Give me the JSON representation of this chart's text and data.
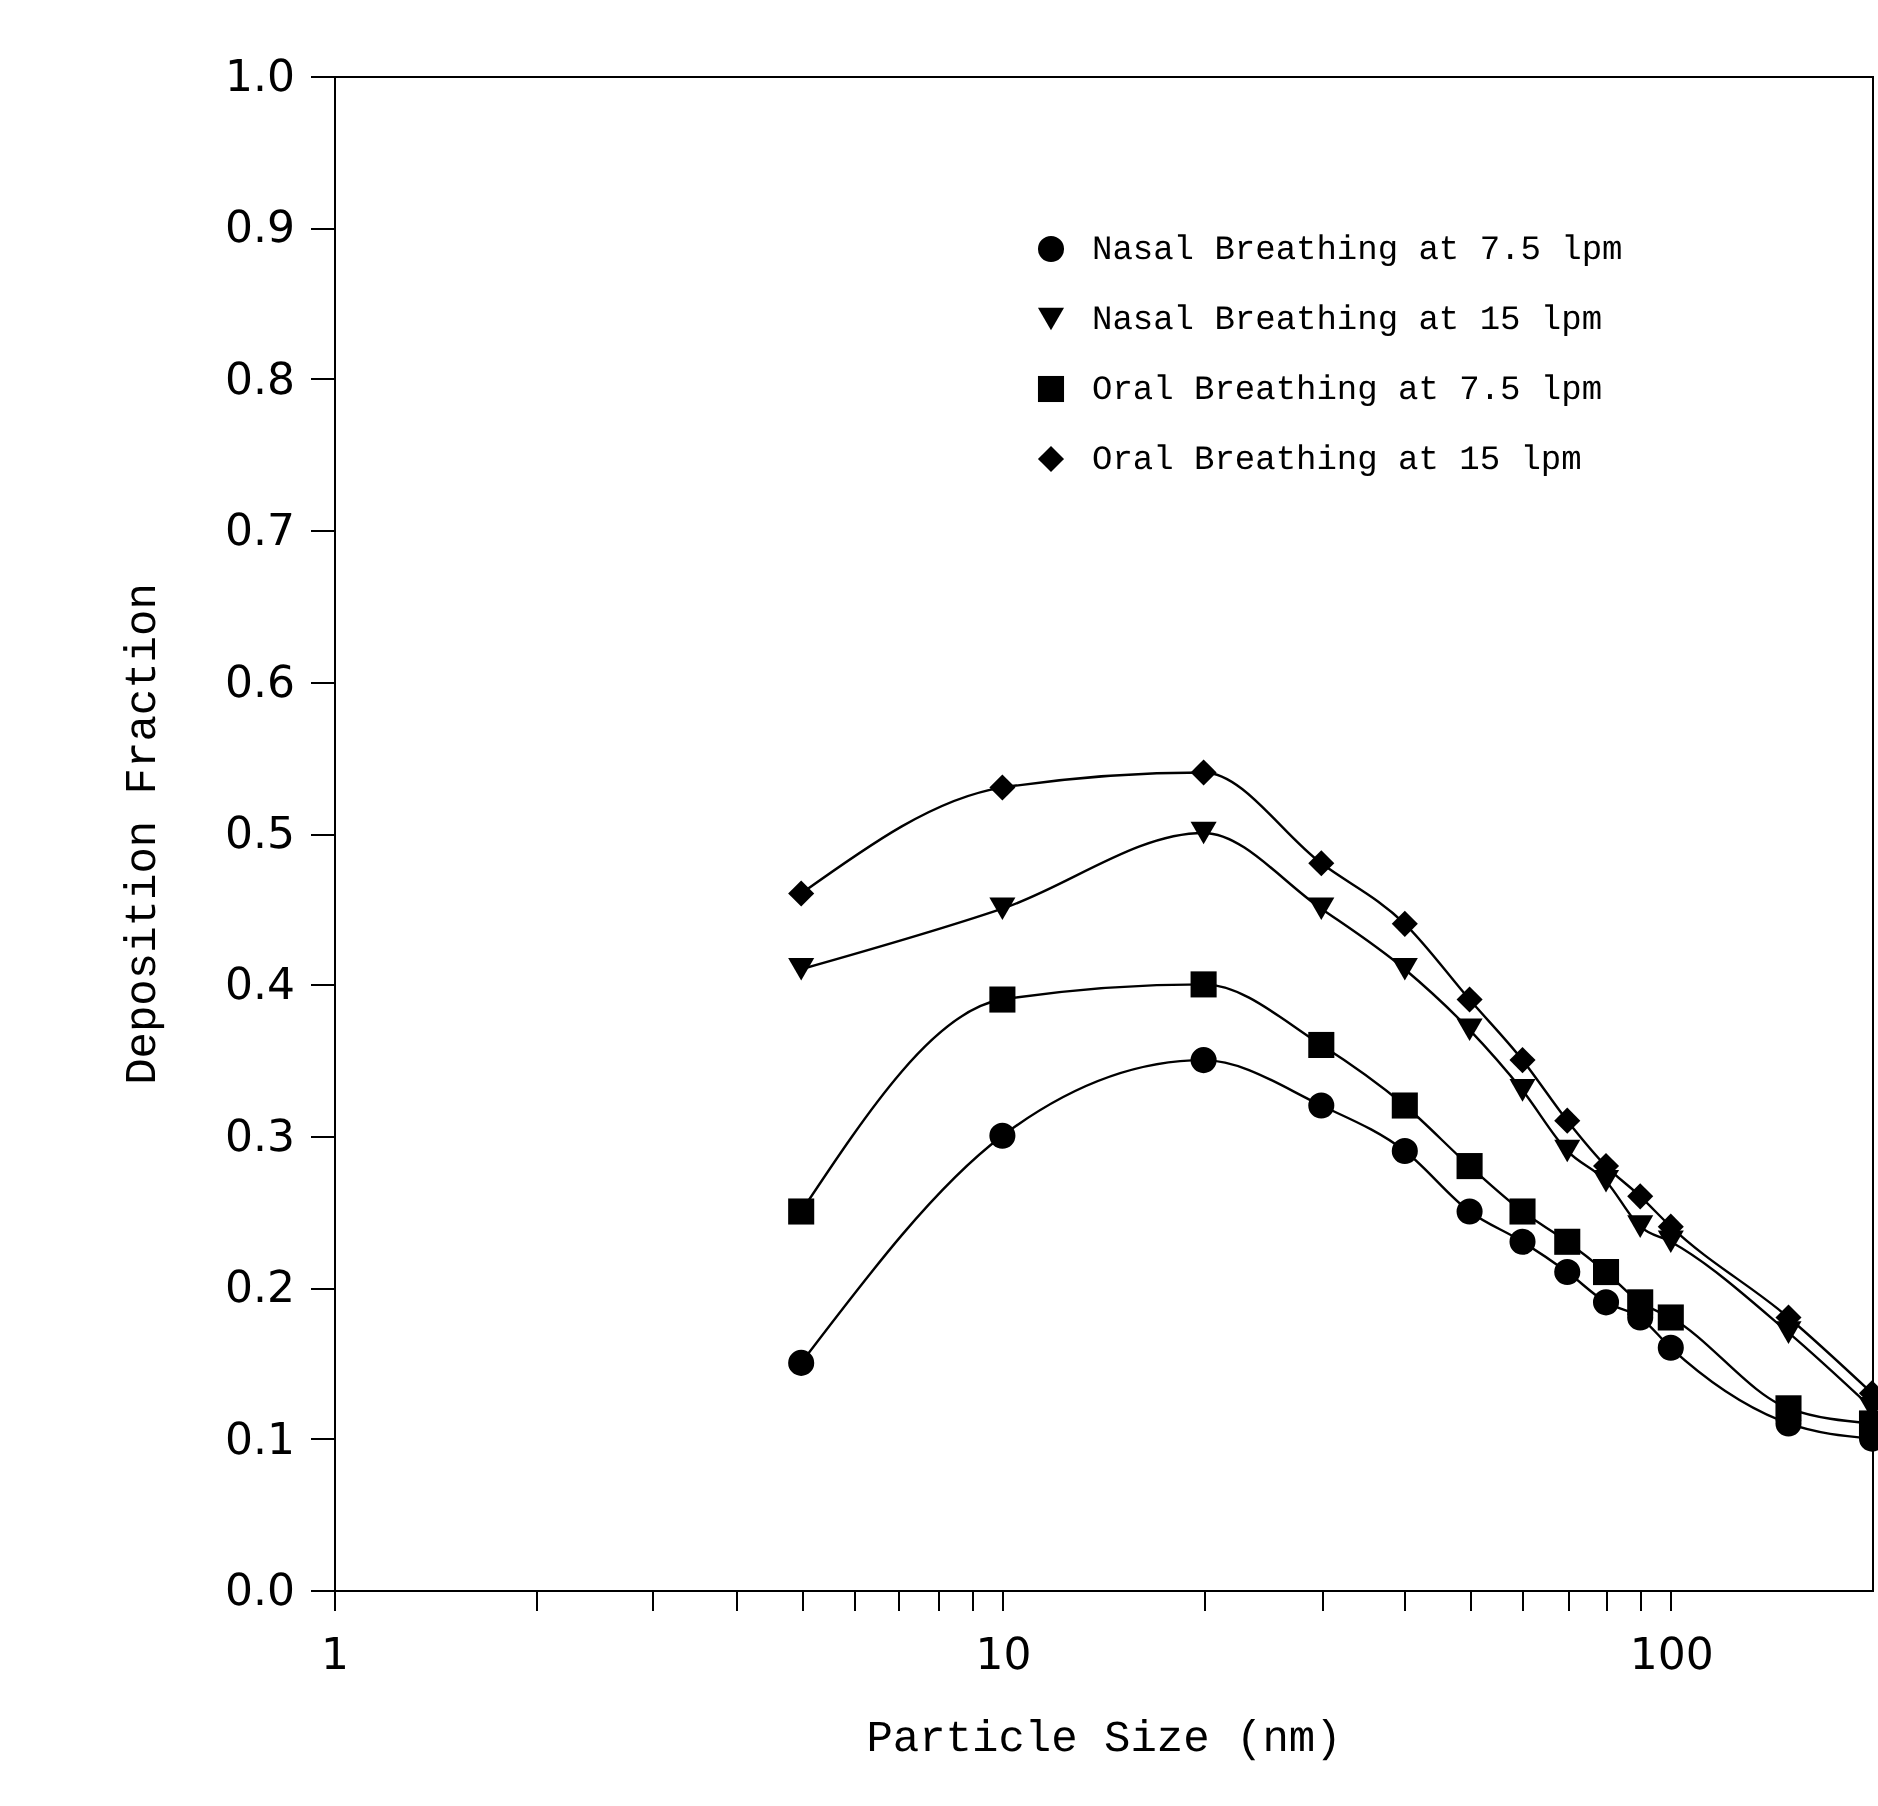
{
  "chart_data": {
    "type": "line",
    "xlabel": "Particle Size (nm)",
    "ylabel": "Deposition Fraction",
    "log": "x",
    "grid": false,
    "legend": "top right",
    "line_style": "solid",
    "x": [
      5,
      10,
      20,
      30,
      40,
      50,
      60,
      70,
      80,
      90,
      100,
      150,
      200
    ],
    "xlim": [
      1,
      200
    ],
    "xticks": [
      1,
      {
        "value": 2,
        "label": null
      },
      {
        "value": 3,
        "label": null
      },
      {
        "value": 4,
        "label": null
      },
      {
        "value": 5,
        "label": null
      },
      {
        "value": 6,
        "label": null
      },
      {
        "value": 7,
        "label": null
      },
      {
        "value": 8,
        "label": null
      },
      {
        "value": 9,
        "label": null
      },
      10,
      {
        "value": 20,
        "label": null
      },
      {
        "value": 30,
        "label": null
      },
      {
        "value": 40,
        "label": null
      },
      {
        "value": 50,
        "label": null
      },
      {
        "value": 60,
        "label": null
      },
      {
        "value": 70,
        "label": null
      },
      {
        "value": 80,
        "label": null
      },
      {
        "value": 90,
        "label": null
      },
      100
    ],
    "ylim": [
      0,
      1
    ],
    "yticks": [
      {
        "value": 0,
        "label": "0.0"
      },
      0.1,
      0.2,
      0.3,
      0.4,
      0.5,
      0.6,
      0.7,
      0.8,
      0.9,
      {
        "value": 1,
        "label": "1.0"
      }
    ],
    "series": [
      {
        "name": "Nasal Breathing at 7.5 lpm",
        "color": "#000000",
        "marker": "circle",
        "values": [
          0.15,
          0.3,
          0.35,
          0.32,
          0.29,
          0.25,
          0.23,
          0.21,
          0.19,
          0.18,
          0.16,
          0.11,
          0.1
        ]
      },
      {
        "name": "Nasal Breathing at 15 lpm",
        "color": "#000000",
        "marker": "triangle",
        "values": [
          0.41,
          0.45,
          0.5,
          0.45,
          0.41,
          0.37,
          0.33,
          0.29,
          0.27,
          0.24,
          0.23,
          0.17,
          0.12
        ]
      },
      {
        "name": "Oral Breathing at 7.5 lpm",
        "color": "#000000",
        "marker": "square",
        "values": [
          0.25,
          0.39,
          0.4,
          0.36,
          0.32,
          0.28,
          0.25,
          0.23,
          0.21,
          0.19,
          0.18,
          0.12,
          0.11
        ]
      },
      {
        "name": "Oral Breathing at 15 lpm",
        "color": "#000000",
        "marker": "diamond",
        "values": [
          0.46,
          0.53,
          0.54,
          0.48,
          0.44,
          0.39,
          0.35,
          0.31,
          0.28,
          0.26,
          0.24,
          0.18,
          0.13
        ]
      }
    ]
  }
}
